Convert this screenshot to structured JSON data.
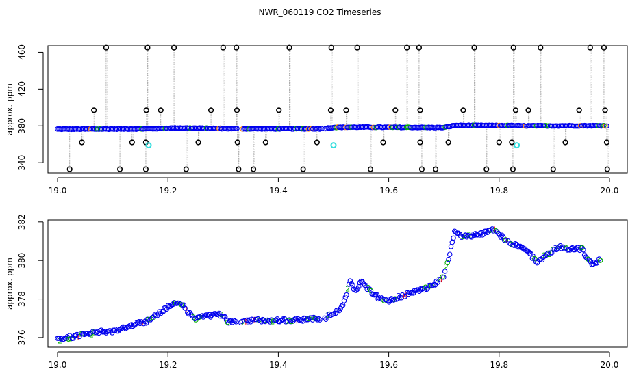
{
  "figure_title": "NWR_060119  CO2 Timeseries",
  "chart_data": [
    {
      "type": "scatter",
      "panel": "top",
      "title": "NWR_060119  CO2 Timeseries",
      "xlabel": "",
      "ylabel": "approx. ppm",
      "xlim": [
        19.0,
        20.0
      ],
      "ylim": [
        329,
        467
      ],
      "x_ticks": [
        "19.0",
        "19.2",
        "19.4",
        "19.6",
        "19.8",
        "20.0"
      ],
      "x_tick_values": [
        19.0,
        19.2,
        19.4,
        19.6,
        19.8,
        20.0
      ],
      "y_ticks": [
        "340",
        "380",
        "420",
        "460"
      ],
      "y_tick_values": [
        340,
        380,
        420,
        460
      ],
      "grid": false,
      "baseline": [
        [
          19.0,
          376.5
        ],
        [
          19.16,
          376.8
        ],
        [
          19.2,
          377.4
        ],
        [
          19.22,
          377.8
        ],
        [
          19.33,
          376.9
        ],
        [
          19.48,
          376.9
        ],
        [
          19.5,
          378.4
        ],
        [
          19.55,
          378.6
        ],
        [
          19.7,
          378.2
        ],
        [
          19.72,
          380.5
        ],
        [
          19.82,
          380.3
        ],
        [
          19.84,
          380.0
        ],
        [
          19.99,
          380.2
        ]
      ],
      "outliers_high": [
        19.088,
        19.163,
        19.211,
        19.3,
        19.324,
        19.42,
        19.496,
        19.543,
        19.633,
        19.655,
        19.755,
        19.826,
        19.875,
        19.965,
        19.99
      ],
      "outliers_low": [
        19.022,
        19.113,
        19.16,
        19.233,
        19.328,
        19.355,
        19.445,
        19.567,
        19.66,
        19.685,
        19.777,
        19.825,
        19.898,
        19.996
      ],
      "outliers_mid_high": [
        19.066,
        19.161,
        19.187,
        19.278,
        19.325,
        19.401,
        19.495,
        19.523,
        19.612,
        19.657,
        19.735,
        19.83,
        19.853,
        19.945,
        19.992
      ],
      "outliers_mid_low": [
        19.044,
        19.135,
        19.16,
        19.255,
        19.326,
        19.377,
        19.47,
        19.59,
        19.657,
        19.708,
        19.8,
        19.823,
        19.92,
        19.995
      ],
      "cyan_points": [
        [
          19.165,
          359
        ],
        [
          19.5,
          359
        ],
        [
          19.832,
          359
        ]
      ],
      "high_value": 465,
      "mid_high_value": 397,
      "mid_low_value": 362,
      "low_value": 333
    },
    {
      "type": "scatter",
      "panel": "bottom",
      "xlabel": "",
      "ylabel": "approx. ppm",
      "xlim": [
        19.0,
        20.0
      ],
      "ylim": [
        375.5,
        382.1
      ],
      "x_ticks": [
        "19.0",
        "19.2",
        "19.4",
        "19.6",
        "19.8",
        "20.0"
      ],
      "x_tick_values": [
        19.0,
        19.2,
        19.4,
        19.6,
        19.8,
        20.0
      ],
      "y_ticks": [
        "376",
        "378",
        "380",
        "382"
      ],
      "y_tick_values": [
        376,
        378,
        380,
        382
      ],
      "grid": false,
      "series": [
        {
          "x": [
            19.0,
            19.02,
            19.04,
            19.06,
            19.08,
            19.1,
            19.12,
            19.14,
            19.16,
            19.17,
            19.19,
            19.21,
            19.23,
            19.24,
            19.25,
            19.27,
            19.29,
            19.3,
            19.31,
            19.33,
            19.36,
            19.38,
            19.4,
            19.42,
            19.44,
            19.46,
            19.48,
            19.5,
            19.51,
            19.52,
            19.53,
            19.54,
            19.55,
            19.56,
            19.58,
            19.6,
            19.62,
            19.64,
            19.66,
            19.67,
            19.69,
            19.7,
            19.71,
            19.72,
            19.73,
            19.75,
            19.77,
            19.79,
            19.81,
            19.83,
            19.85,
            19.87,
            19.89,
            19.91,
            19.93,
            19.95,
            19.96,
            19.97,
            19.99
          ],
          "y": [
            375.9,
            376.0,
            376.1,
            376.2,
            376.3,
            376.3,
            376.5,
            376.7,
            376.8,
            377.0,
            377.4,
            377.8,
            377.6,
            377.2,
            377.0,
            377.1,
            377.2,
            377.1,
            376.8,
            376.8,
            376.9,
            376.9,
            376.9,
            376.9,
            376.9,
            377.0,
            376.9,
            377.3,
            377.4,
            377.9,
            379.0,
            378.3,
            379.0,
            378.6,
            378.1,
            377.9,
            378.1,
            378.3,
            378.5,
            378.6,
            378.9,
            379.2,
            380.3,
            381.6,
            381.3,
            381.3,
            381.4,
            381.6,
            381.1,
            380.8,
            380.5,
            379.9,
            380.4,
            380.7,
            380.6,
            380.6,
            380.1,
            379.8,
            380.2
          ]
        }
      ]
    }
  ]
}
